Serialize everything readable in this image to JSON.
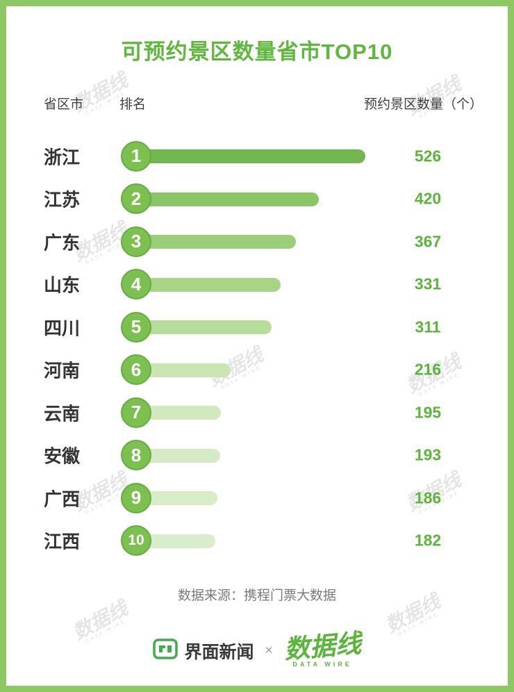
{
  "title": "可预约景区数量省市TOP10",
  "table_headers": {
    "province": "省区市",
    "rank": "排名",
    "count": "预约景区数量（个）"
  },
  "chart_data": {
    "type": "bar",
    "orientation": "horizontal",
    "title": "可预约景区数量省市TOP10",
    "categories": [
      "浙江",
      "江苏",
      "广东",
      "山东",
      "四川",
      "河南",
      "云南",
      "安徽",
      "广西",
      "江西"
    ],
    "ranks": [
      1,
      2,
      3,
      4,
      5,
      6,
      7,
      8,
      9,
      10
    ],
    "values": [
      526,
      420,
      367,
      331,
      311,
      216,
      195,
      193,
      186,
      182
    ],
    "max_value": 526,
    "xlabel": "预约景区数量（个）",
    "ylabel": "省区市",
    "legend": "none",
    "grid": "off",
    "bar_colors": [
      "#71b74e",
      "#8ac566",
      "#9bce79",
      "#a7d487",
      "#b7dd9b",
      "#c9e5b2",
      "#d2e9bf",
      "#d6ebc5",
      "#d8ecc8",
      "#daedcb"
    ],
    "value_label_color": "#5bb53a",
    "rank_badge_color": "#7cc050",
    "title_color": "#5eb83c",
    "source": "数据来源：携程门票大数据"
  },
  "source_note": "数据来源：携程门票大数据",
  "footer": {
    "jiemian_label": "界面新闻",
    "separator": "×",
    "datawire_label": "数据线",
    "datawire_sub": "DATA WIRE"
  },
  "watermark": {
    "text": "数据线",
    "sub": "DATA WIRE"
  }
}
